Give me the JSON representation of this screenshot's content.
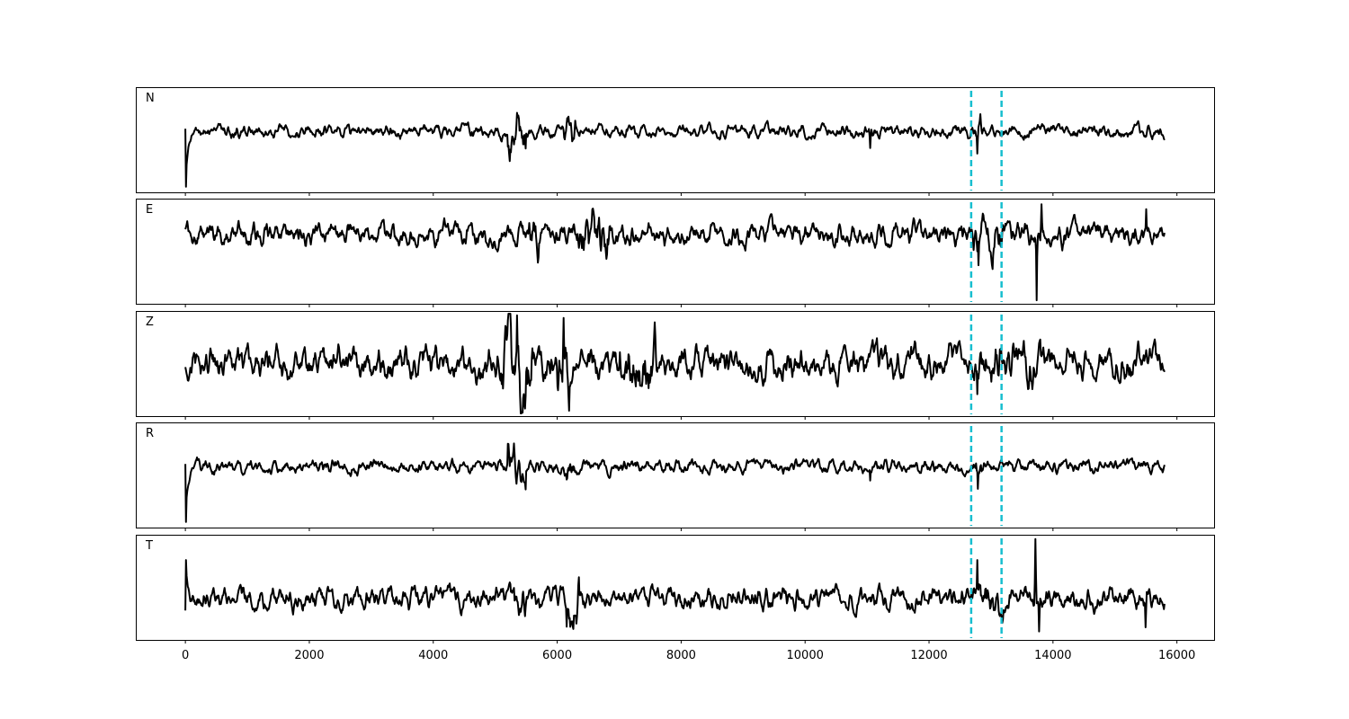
{
  "chart_data": {
    "type": "line",
    "title": "",
    "xlabel": "",
    "ylabel": "",
    "xlim": [
      -800,
      16600
    ],
    "xticks": [
      0,
      2000,
      4000,
      6000,
      8000,
      10000,
      12000,
      14000,
      16000
    ],
    "xtick_labels": [
      "0",
      "2000",
      "4000",
      "6000",
      "8000",
      "10000",
      "12000",
      "14000",
      "16000"
    ],
    "grid": false,
    "legend": "none",
    "trace_color": "#000000",
    "marker_color": "#17becf",
    "marker_lines": [
      12680,
      13170
    ],
    "sample_count": 15800,
    "panels": [
      {
        "label": "N",
        "seed": 11,
        "ylim": [
          -1.1,
          0.8
        ],
        "baseline_amp": 0.09,
        "onset": {
          "x": 0,
          "y0": 0.05,
          "y1": -1.0
        },
        "bursts": [
          {
            "start": 5200,
            "end": 5500,
            "amp": 0.35
          },
          {
            "start": 6100,
            "end": 6300,
            "amp": 0.25
          },
          {
            "start": 12750,
            "end": 12850,
            "amp": 0.3
          }
        ],
        "spikes": [
          {
            "x": 12780,
            "y": -0.4
          },
          {
            "x": 11050,
            "y": -0.3
          }
        ]
      },
      {
        "label": "E",
        "seed": 23,
        "ylim": [
          -1.0,
          0.5
        ],
        "baseline_amp": 0.12,
        "onset": null,
        "bursts": [
          {
            "start": 5500,
            "end": 5700,
            "amp": 0.25
          },
          {
            "start": 6300,
            "end": 6900,
            "amp": 0.3
          },
          {
            "start": 12700,
            "end": 13200,
            "amp": 0.25
          }
        ],
        "spikes": [
          {
            "x": 12800,
            "y": -0.45
          },
          {
            "x": 13740,
            "y": -0.95
          },
          {
            "x": 13820,
            "y": 0.42
          },
          {
            "x": 15500,
            "y": 0.35
          }
        ]
      },
      {
        "label": "Z",
        "seed": 37,
        "ylim": [
          -0.6,
          0.6
        ],
        "baseline_amp": 0.14,
        "onset": null,
        "bursts": [
          {
            "start": 5100,
            "end": 5600,
            "amp": 0.45
          },
          {
            "start": 6000,
            "end": 6200,
            "amp": 0.35
          },
          {
            "start": 7000,
            "end": 7600,
            "amp": 0.3
          },
          {
            "start": 12700,
            "end": 13800,
            "amp": 0.22
          }
        ],
        "spikes": [
          {
            "x": 5350,
            "y": 0.55
          },
          {
            "x": 6100,
            "y": 0.52
          },
          {
            "x": 12780,
            "y": -0.35
          }
        ]
      },
      {
        "label": "R",
        "seed": 51,
        "ylim": [
          -1.1,
          0.8
        ],
        "baseline_amp": 0.09,
        "onset": {
          "x": 0,
          "y0": 0.05,
          "y1": -1.0
        },
        "bursts": [
          {
            "start": 5200,
            "end": 5500,
            "amp": 0.35
          },
          {
            "start": 6100,
            "end": 6300,
            "amp": 0.25
          },
          {
            "start": 12750,
            "end": 12850,
            "amp": 0.3
          }
        ],
        "spikes": [
          {
            "x": 12790,
            "y": -0.4
          },
          {
            "x": 11050,
            "y": -0.25
          }
        ]
      },
      {
        "label": "T",
        "seed": 67,
        "ylim": [
          -0.5,
          0.75
        ],
        "baseline_amp": 0.1,
        "onset": {
          "x": 0,
          "y0": -0.15,
          "y1": 0.45
        },
        "bursts": [
          {
            "start": 5300,
            "end": 5500,
            "amp": 0.2
          },
          {
            "start": 6150,
            "end": 6350,
            "amp": 0.3
          },
          {
            "start": 12750,
            "end": 13200,
            "amp": 0.2
          }
        ],
        "spikes": [
          {
            "x": 12780,
            "y": 0.45
          },
          {
            "x": 13720,
            "y": 0.7
          },
          {
            "x": 13780,
            "y": -0.4
          },
          {
            "x": 15490,
            "y": -0.35
          }
        ]
      }
    ]
  }
}
